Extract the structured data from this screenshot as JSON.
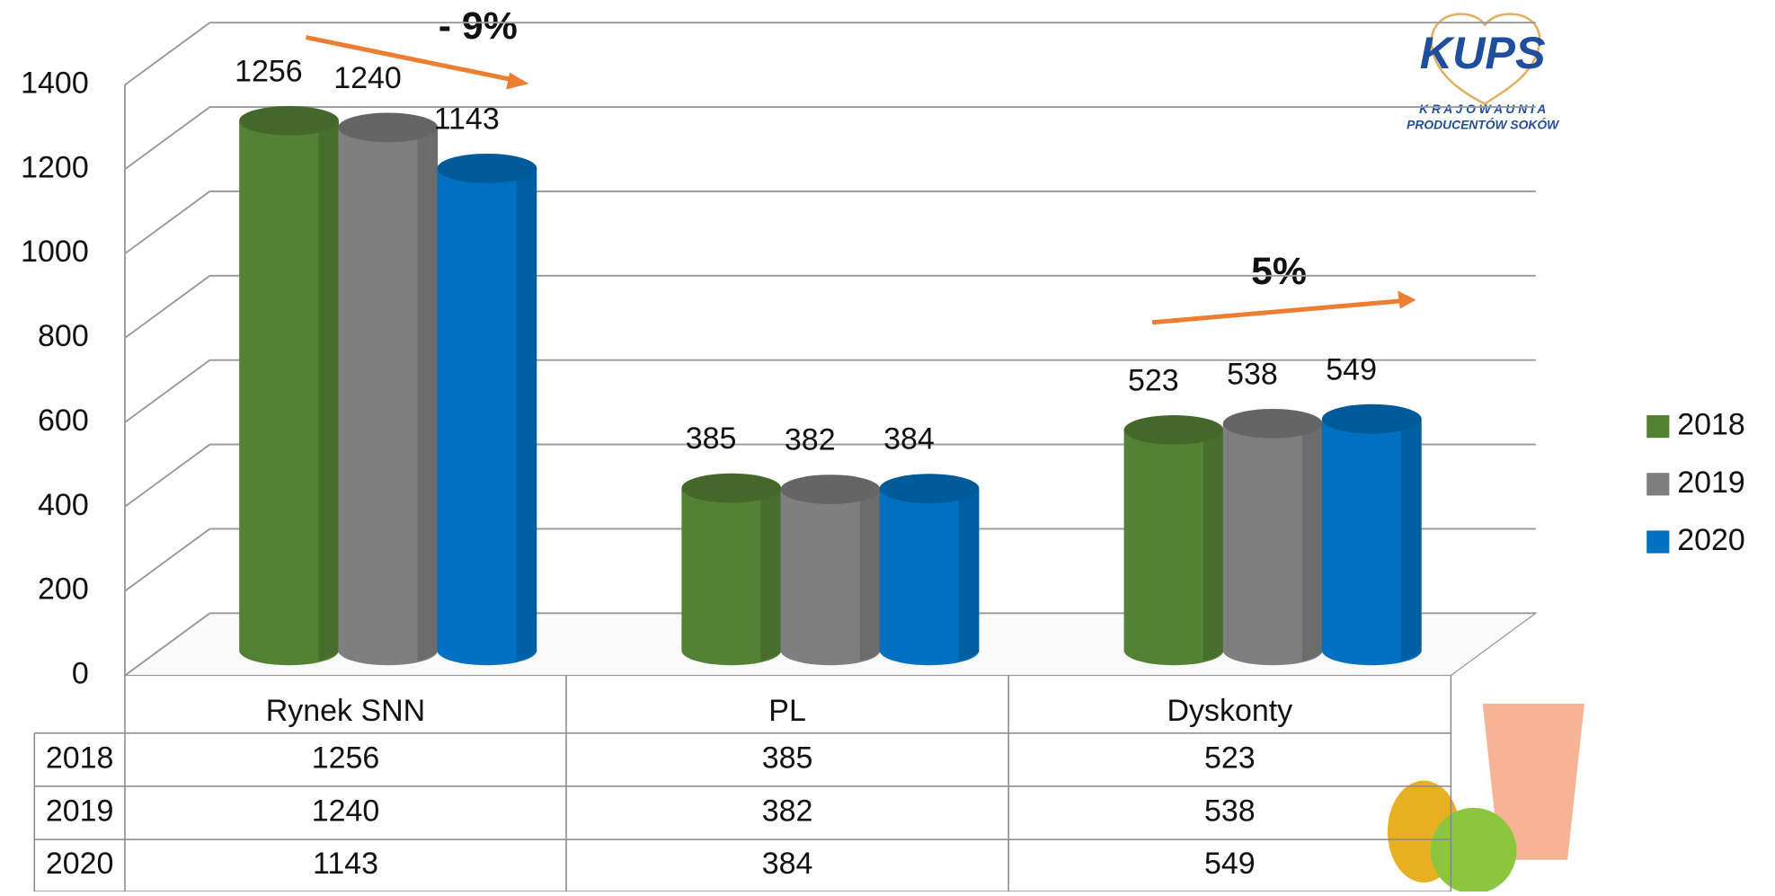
{
  "chart_data": {
    "type": "bar3d",
    "categories": [
      "Rynek SNN",
      "PL",
      "Dyskonty"
    ],
    "series": [
      {
        "name": "2018",
        "color": "#548235",
        "values": [
          1256,
          385,
          523
        ]
      },
      {
        "name": "2019",
        "color": "#7f7f7f",
        "values": [
          1240,
          382,
          538
        ]
      },
      {
        "name": "2020",
        "color": "#0070c0",
        "values": [
          1143,
          384,
          549
        ]
      }
    ],
    "ylim": [
      0,
      1400
    ],
    "yticks": [
      0,
      200,
      400,
      600,
      800,
      1000,
      1200,
      1400
    ],
    "grid": true,
    "legend": "right",
    "data_table": true,
    "annotations": [
      "- 9%",
      "5%"
    ],
    "logo": {
      "name": "KUPS",
      "line1": "K R A J O W A   U N I A",
      "line2": "PRODUCENTÓW SOKÓW"
    }
  }
}
